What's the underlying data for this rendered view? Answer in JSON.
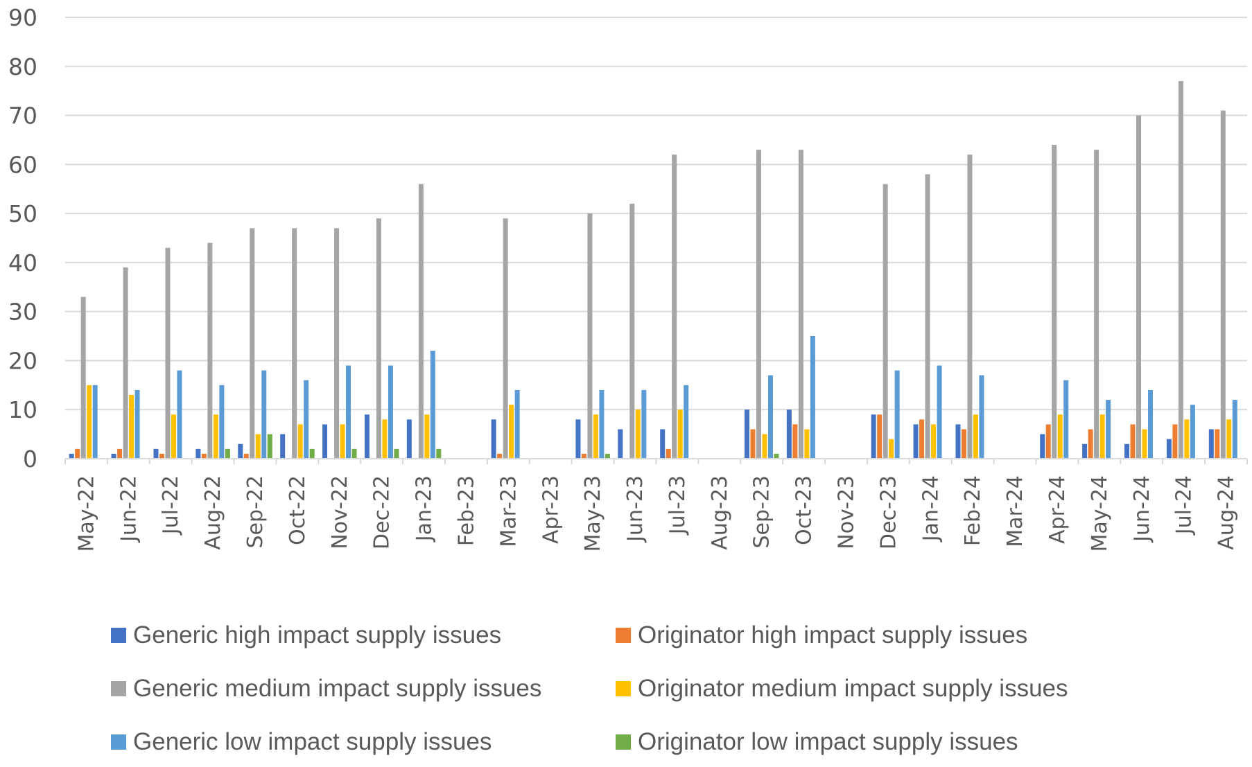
{
  "chart_data": {
    "type": "bar",
    "title": "",
    "xlabel": "",
    "ylabel": "",
    "ylim": [
      0,
      90
    ],
    "yticks": [
      0,
      10,
      20,
      30,
      40,
      50,
      60,
      70,
      80,
      90
    ],
    "grid": true,
    "legend_position": "bottom",
    "categories": [
      "May-22",
      "Jun-22",
      "Jul-22",
      "Aug-22",
      "Sep-22",
      "Oct-22",
      "Nov-22",
      "Dec-22",
      "Jan-23",
      "Feb-23",
      "Mar-23",
      "Apr-23",
      "May-23",
      "Jun-23",
      "Jul-23",
      "Aug-23",
      "Sep-23",
      "Oct-23",
      "Nov-23",
      "Dec-23",
      "Jan-24",
      "Feb-24",
      "Mar-24",
      "Apr-24",
      "May-24",
      "Jun-24",
      "Jul-24",
      "Aug-24"
    ],
    "series": [
      {
        "name": "Generic high impact supply issues",
        "color": "#4472C4",
        "values": [
          1,
          1,
          2,
          2,
          3,
          5,
          7,
          9,
          8,
          null,
          8,
          null,
          8,
          6,
          6,
          null,
          10,
          10,
          null,
          9,
          7,
          7,
          null,
          5,
          3,
          3,
          4,
          6
        ]
      },
      {
        "name": "Originator high impact supply issues",
        "color": "#ED7D31",
        "values": [
          2,
          2,
          1,
          1,
          1,
          0,
          0,
          0,
          0,
          null,
          1,
          null,
          1,
          0,
          2,
          null,
          6,
          7,
          null,
          9,
          8,
          6,
          null,
          7,
          6,
          7,
          7,
          6
        ]
      },
      {
        "name": "Generic medium impact supply issues",
        "color": "#A5A5A5",
        "values": [
          33,
          39,
          43,
          44,
          47,
          47,
          47,
          49,
          56,
          null,
          49,
          null,
          50,
          52,
          62,
          null,
          63,
          63,
          null,
          56,
          58,
          62,
          null,
          64,
          63,
          70,
          77,
          71
        ]
      },
      {
        "name": "Originator medium impact supply issues",
        "color": "#FFC000",
        "values": [
          15,
          13,
          9,
          9,
          5,
          7,
          7,
          8,
          9,
          null,
          11,
          null,
          9,
          10,
          10,
          null,
          5,
          6,
          null,
          4,
          7,
          9,
          null,
          9,
          9,
          6,
          8,
          8
        ]
      },
      {
        "name": "Generic low impact supply issues",
        "color": "#5B9BD5",
        "values": [
          15,
          14,
          18,
          15,
          18,
          16,
          19,
          19,
          22,
          null,
          14,
          null,
          14,
          14,
          15,
          null,
          17,
          25,
          null,
          18,
          19,
          17,
          null,
          16,
          12,
          14,
          11,
          12
        ]
      },
      {
        "name": "Originator low impact supply issues",
        "color": "#70AD47",
        "values": [
          0,
          0,
          0,
          2,
          5,
          2,
          2,
          2,
          2,
          null,
          0,
          null,
          1,
          0,
          0,
          null,
          1,
          0,
          null,
          0,
          0,
          0,
          null,
          0,
          0,
          0,
          0,
          0
        ]
      }
    ]
  },
  "legend": {
    "items": [
      {
        "label": "Generic high impact supply issues",
        "color": "#4472C4"
      },
      {
        "label": "Originator high impact supply issues",
        "color": "#ED7D31"
      },
      {
        "label": "Generic medium impact supply issues",
        "color": "#A5A5A5"
      },
      {
        "label": "Originator medium impact supply issues",
        "color": "#FFC000"
      },
      {
        "label": "Generic low impact supply issues",
        "color": "#5B9BD5"
      },
      {
        "label": "Originator low impact supply issues",
        "color": "#70AD47"
      }
    ]
  },
  "colors": {
    "gridline": "#D9D9D9",
    "text": "#595959"
  }
}
